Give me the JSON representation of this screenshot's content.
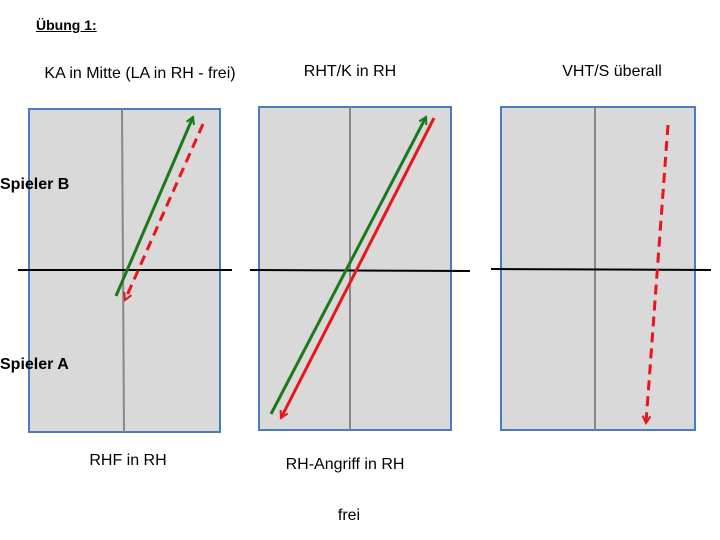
{
  "title": "Übung 1:",
  "players": {
    "top": "Spieler B",
    "bottom": "Spieler A"
  },
  "panels": [
    {
      "title": "KA in Mitte (LA in RH - frei)",
      "caption": "RHF in RH"
    },
    {
      "title": "RHT/K in RH",
      "caption": "RH-Angriff in RH"
    },
    {
      "title": "VHT/S überall"
    }
  ],
  "note": "frei"
}
